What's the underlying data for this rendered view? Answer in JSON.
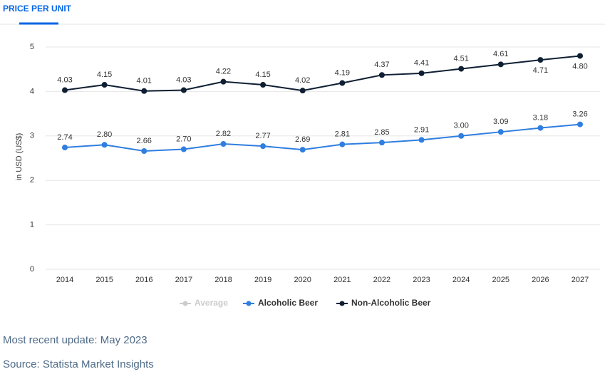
{
  "tab": {
    "title": "PRICE PER UNIT"
  },
  "chart_data": {
    "type": "line",
    "y_label": "in USD (US$)",
    "categories": [
      "2014",
      "2015",
      "2016",
      "2017",
      "2018",
      "2019",
      "2020",
      "2021",
      "2022",
      "2023",
      "2024",
      "2025",
      "2026",
      "2027"
    ],
    "ylim": [
      0,
      5
    ],
    "yticks": [
      0,
      1,
      2,
      3,
      4,
      5
    ],
    "grid": true,
    "series": [
      {
        "name": "Average",
        "color": "#cccccc",
        "hidden": true,
        "values": [
          null,
          null,
          null,
          null,
          null,
          null,
          null,
          null,
          null,
          null,
          null,
          null,
          null,
          null
        ]
      },
      {
        "name": "Alcoholic Beer",
        "color": "#2f7ee0",
        "values": [
          2.74,
          2.8,
          2.66,
          2.7,
          2.82,
          2.77,
          2.69,
          2.81,
          2.85,
          2.91,
          3,
          3.09,
          3.18,
          3.26
        ],
        "value_labels": [
          "2.74",
          "2.80",
          "2.66",
          "2.70",
          "2.82",
          "2.77",
          "2.69",
          "2.81",
          "2.85",
          "2.91",
          "3.00",
          "3.09",
          "3.18",
          "3.26"
        ]
      },
      {
        "name": "Non-Alcoholic Beer",
        "color": "#0f1f33",
        "values": [
          4.03,
          4.15,
          4.01,
          4.03,
          4.22,
          4.15,
          4.02,
          4.19,
          4.37,
          4.41,
          4.51,
          4.61,
          4.71,
          4.8
        ],
        "value_labels": [
          "4.03",
          "4.15",
          "4.01",
          "4.03",
          "4.22",
          "4.15",
          "4.02",
          "4.19",
          "4.37",
          "4.41",
          "4.51",
          "4.61",
          "4.71",
          "4.80"
        ]
      }
    ]
  },
  "footer": {
    "update": "Most recent update: May 2023",
    "source": "Source: Statista Market Insights"
  }
}
